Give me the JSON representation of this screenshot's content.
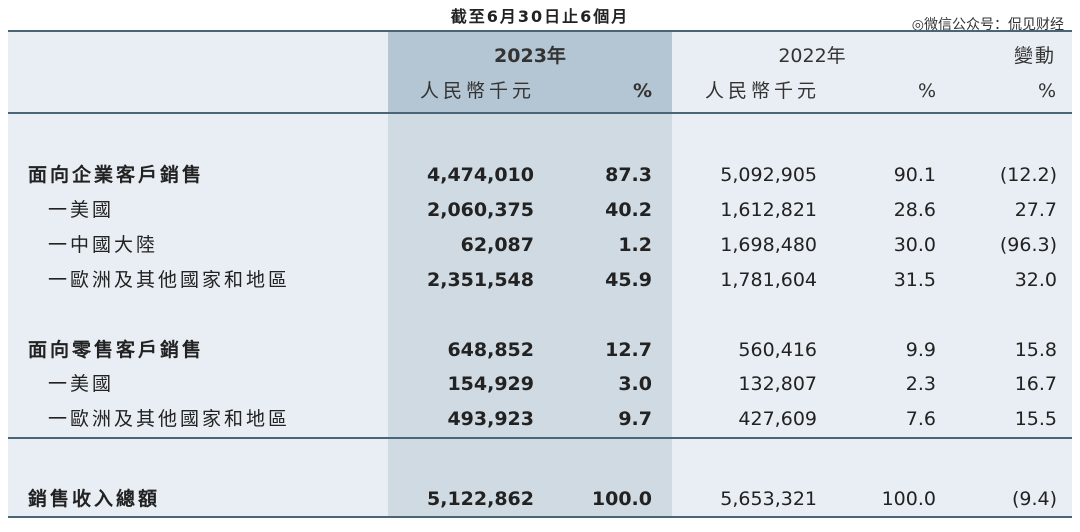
{
  "header": {
    "period": "截至6月30日止6個月",
    "watermark": "微信公众号：侃见财经",
    "year_2023": "2023年",
    "year_2022": "2022年",
    "change": "變動",
    "currency_2023": "人民幣千元",
    "pct_2023": "%",
    "currency_2022": "人民幣千元",
    "pct_2022": "%",
    "pct_change": "%"
  },
  "rows": [
    {
      "label": "面向企業客戶銷售",
      "v2023": "4,474,010",
      "p2023": "87.3",
      "v2022": "5,092,905",
      "p2022": "90.1",
      "chg": "(12.2)"
    },
    {
      "label": "一美國",
      "v2023": "2,060,375",
      "p2023": "40.2",
      "v2022": "1,612,821",
      "p2022": "28.6",
      "chg": "27.7"
    },
    {
      "label": "一中國大陸",
      "v2023": "62,087",
      "p2023": "1.2",
      "v2022": "1,698,480",
      "p2022": "30.0",
      "chg": "(96.3)"
    },
    {
      "label": "一歐洲及其他國家和地區",
      "v2023": "2,351,548",
      "p2023": "45.9",
      "v2022": "1,781,604",
      "p2022": "31.5",
      "chg": "32.0"
    },
    {
      "label": "面向零售客戶銷售",
      "v2023": "648,852",
      "p2023": "12.7",
      "v2022": "560,416",
      "p2022": "9.9",
      "chg": "15.8"
    },
    {
      "label": "一美國",
      "v2023": "154,929",
      "p2023": "3.0",
      "v2022": "132,807",
      "p2022": "2.3",
      "chg": "16.7"
    },
    {
      "label": "一歐洲及其他國家和地區",
      "v2023": "493,923",
      "p2023": "9.7",
      "v2022": "427,609",
      "p2022": "7.6",
      "chg": "15.5"
    },
    {
      "label": "銷售收入總額",
      "v2023": "5,122,862",
      "p2023": "100.0",
      "v2022": "5,653,321",
      "p2022": "100.0",
      "chg": "(9.4)"
    }
  ]
}
